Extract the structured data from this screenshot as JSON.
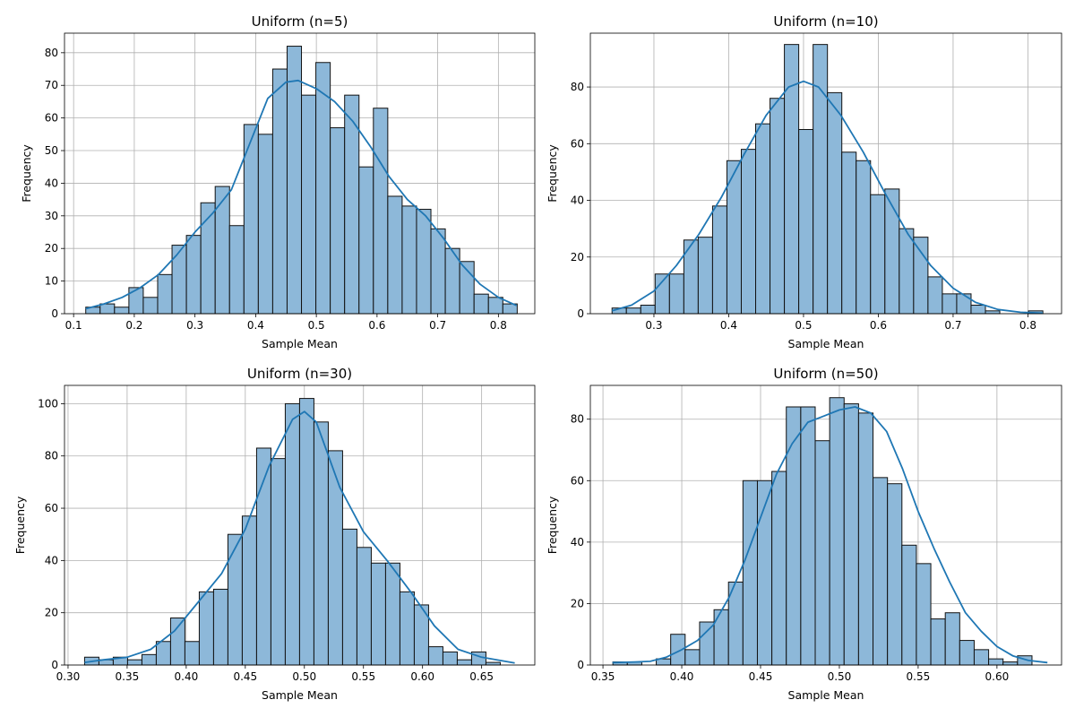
{
  "colors": {
    "bar_fill": "#8db8d9",
    "bar_edge": "#111111",
    "kde_line": "#1f77b4",
    "grid": "#b0b0b0"
  },
  "chart_data": [
    {
      "type": "bar",
      "title": "Uniform (n=5)",
      "xlabel": "Sample Mean",
      "ylabel": "Frequency",
      "grid": true,
      "xlim": [
        0.085,
        0.86
      ],
      "ylim": [
        0,
        86
      ],
      "xticks": [
        0.1,
        0.2,
        0.3,
        0.4,
        0.5,
        0.6,
        0.7,
        0.8
      ],
      "xtick_labels": [
        "0.1",
        "0.2",
        "0.3",
        "0.4",
        "0.5",
        "0.6",
        "0.7",
        "0.8"
      ],
      "yticks": [
        0,
        10,
        20,
        30,
        40,
        50,
        60,
        70,
        80
      ],
      "ytick_labels": [
        "0",
        "10",
        "20",
        "30",
        "40",
        "50",
        "60",
        "70",
        "80"
      ],
      "bin_start": 0.12,
      "bin_width": 0.0237,
      "values": [
        2,
        3,
        2,
        8,
        5,
        12,
        21,
        24,
        34,
        39,
        27,
        58,
        55,
        75,
        82,
        67,
        77,
        57,
        67,
        45,
        63,
        36,
        33,
        32,
        26,
        20,
        16,
        6,
        5,
        3
      ],
      "kde": {
        "x": [
          0.12,
          0.15,
          0.18,
          0.21,
          0.24,
          0.27,
          0.3,
          0.33,
          0.36,
          0.39,
          0.42,
          0.45,
          0.47,
          0.5,
          0.53,
          0.56,
          0.59,
          0.62,
          0.65,
          0.68,
          0.71,
          0.74,
          0.77,
          0.8,
          0.83
        ],
        "y": [
          1.5,
          3,
          5,
          8,
          12,
          18,
          25,
          31,
          38,
          52,
          66,
          71,
          71.5,
          69,
          65,
          59,
          51,
          42,
          35,
          30,
          23,
          15,
          9,
          5,
          2.5
        ]
      }
    },
    {
      "type": "bar",
      "title": "Uniform (n=10)",
      "xlabel": "Sample Mean",
      "ylabel": "Frequency",
      "grid": true,
      "xlim": [
        0.215,
        0.845
      ],
      "ylim": [
        0,
        99
      ],
      "xticks": [
        0.3,
        0.4,
        0.5,
        0.6,
        0.7,
        0.8
      ],
      "xtick_labels": [
        "0.3",
        "0.4",
        "0.5",
        "0.6",
        "0.7",
        "0.8"
      ],
      "yticks": [
        0,
        20,
        40,
        60,
        80
      ],
      "ytick_labels": [
        "0",
        "20",
        "40",
        "60",
        "80"
      ],
      "bin_start": 0.244,
      "bin_width": 0.0192,
      "values": [
        2,
        2,
        3,
        14,
        14,
        26,
        27,
        38,
        54,
        58,
        67,
        76,
        95,
        65,
        95,
        78,
        57,
        54,
        42,
        44,
        30,
        27,
        13,
        7,
        7,
        3,
        1,
        0,
        0,
        1
      ],
      "kde": {
        "x": [
          0.244,
          0.27,
          0.3,
          0.33,
          0.36,
          0.39,
          0.42,
          0.45,
          0.48,
          0.5,
          0.52,
          0.55,
          0.58,
          0.61,
          0.64,
          0.67,
          0.7,
          0.73,
          0.76,
          0.79,
          0.82
        ],
        "y": [
          1,
          3,
          8,
          17,
          28,
          41,
          56,
          70,
          80,
          82,
          80,
          70,
          57,
          42,
          28,
          17,
          9,
          4,
          1.5,
          0.5,
          0.2
        ]
      }
    },
    {
      "type": "bar",
      "title": "Uniform (n=30)",
      "xlabel": "Sample Mean",
      "ylabel": "Frequency",
      "grid": true,
      "xlim": [
        0.297,
        0.695
      ],
      "ylim": [
        0,
        107
      ],
      "xticks": [
        0.3,
        0.35,
        0.4,
        0.45,
        0.5,
        0.55,
        0.6,
        0.65
      ],
      "xtick_labels": [
        "0.30",
        "0.35",
        "0.40",
        "0.45",
        "0.50",
        "0.55",
        "0.60",
        "0.65"
      ],
      "yticks": [
        0,
        20,
        40,
        60,
        80,
        100
      ],
      "ytick_labels": [
        "0",
        "20",
        "40",
        "60",
        "80",
        "100"
      ],
      "bin_start": 0.314,
      "bin_width": 0.01213,
      "values": [
        3,
        2,
        3,
        2,
        4,
        9,
        18,
        9,
        28,
        29,
        50,
        57,
        83,
        79,
        100,
        102,
        93,
        82,
        52,
        45,
        39,
        39,
        28,
        23,
        7,
        5,
        2,
        5,
        1,
        0
      ],
      "kde": {
        "x": [
          0.314,
          0.33,
          0.35,
          0.37,
          0.39,
          0.41,
          0.43,
          0.45,
          0.47,
          0.49,
          0.5,
          0.51,
          0.53,
          0.55,
          0.57,
          0.59,
          0.61,
          0.63,
          0.65,
          0.678
        ],
        "y": [
          1,
          2,
          3,
          6,
          13,
          24,
          35,
          52,
          76,
          94,
          97,
          93,
          68,
          51,
          40,
          28,
          15,
          6,
          3,
          0.8
        ]
      }
    },
    {
      "type": "bar",
      "title": "Uniform (n=50)",
      "xlabel": "Sample Mean",
      "ylabel": "Frequency",
      "grid": true,
      "xlim": [
        0.342,
        0.641
      ],
      "ylim": [
        0,
        91
      ],
      "xticks": [
        0.35,
        0.4,
        0.45,
        0.5,
        0.55,
        0.6
      ],
      "xtick_labels": [
        "0.35",
        "0.40",
        "0.45",
        "0.50",
        "0.55",
        "0.60"
      ],
      "yticks": [
        0,
        20,
        40,
        60,
        80
      ],
      "ytick_labels": [
        "0",
        "20",
        "40",
        "60",
        "80"
      ],
      "bin_start": 0.3563,
      "bin_width": 0.00917,
      "values": [
        1,
        1,
        0,
        2,
        10,
        5,
        14,
        18,
        27,
        60,
        60,
        63,
        84,
        84,
        73,
        87,
        85,
        82,
        61,
        59,
        39,
        33,
        15,
        17,
        8,
        5,
        2,
        1,
        3,
        0
      ],
      "kde": {
        "x": [
          0.356,
          0.37,
          0.38,
          0.39,
          0.4,
          0.41,
          0.42,
          0.43,
          0.44,
          0.45,
          0.46,
          0.47,
          0.48,
          0.49,
          0.5,
          0.51,
          0.52,
          0.53,
          0.54,
          0.55,
          0.56,
          0.57,
          0.58,
          0.59,
          0.6,
          0.61,
          0.62,
          0.632
        ],
        "y": [
          0.8,
          1,
          1.2,
          2.5,
          5,
          8,
          13,
          22,
          34,
          48,
          62,
          72,
          79,
          81,
          83,
          84,
          82,
          76,
          64,
          50,
          38,
          27,
          17,
          11,
          6,
          3,
          1.5,
          0.8
        ]
      }
    }
  ]
}
